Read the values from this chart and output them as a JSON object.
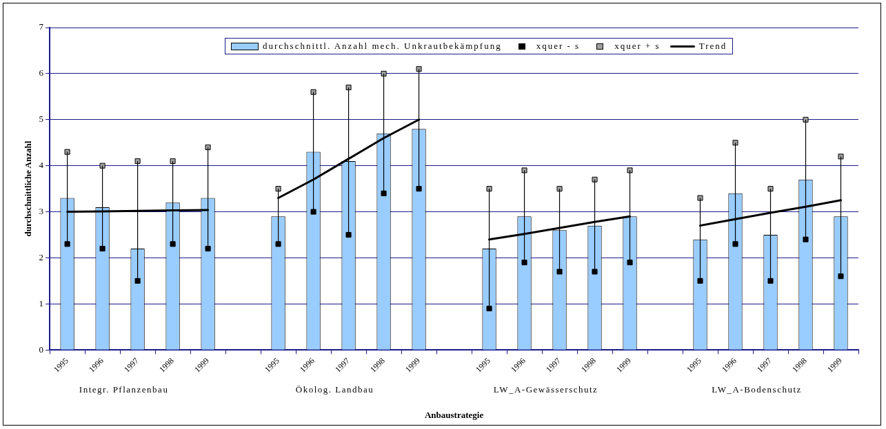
{
  "chart_data": {
    "type": "bar",
    "xlabel": "Anbaustrategie",
    "ylabel": "durchschnittliche Anzahl",
    "annotations": [
      "Integr. Pflanzenbau",
      "Ökolog. Landbau",
      "LW_A-Gewässerschutz",
      "LW_A-Bodenschutz"
    ],
    "categories": [
      "1995",
      "1996",
      "1997",
      "1998",
      "1999",
      null,
      "1995",
      "1996",
      "1997",
      "1998",
      "1999",
      null,
      "1995",
      "1996",
      "1997",
      "1998",
      "1999",
      null,
      "1995",
      "1996",
      "1997",
      "1998",
      "1999"
    ],
    "series": [
      {
        "name": "durchschnittl. Anzahl mech. Unkrautbekämpfung",
        "color": "#99ccff",
        "values": [
          3.3,
          3.1,
          2.2,
          3.2,
          3.3,
          null,
          2.9,
          4.3,
          4.1,
          4.7,
          4.8,
          null,
          2.2,
          2.9,
          2.6,
          2.7,
          2.9,
          null,
          2.4,
          3.4,
          2.5,
          3.7,
          2.9
        ]
      },
      {
        "name": "xquer - s",
        "type": "scatter",
        "marker": "square",
        "color": "#000000",
        "values": [
          2.3,
          2.2,
          1.5,
          2.3,
          2.2,
          null,
          2.3,
          3.0,
          2.5,
          3.4,
          3.5,
          null,
          0.9,
          1.9,
          1.7,
          1.7,
          1.9,
          null,
          1.5,
          2.3,
          1.5,
          2.4,
          1.6
        ]
      },
      {
        "name": "xquer + s",
        "type": "scatter",
        "marker": "square",
        "color": "#a0a0a0",
        "values": [
          4.3,
          4.0,
          4.1,
          4.1,
          4.4,
          null,
          3.5,
          5.6,
          5.7,
          6.0,
          6.1,
          null,
          3.5,
          3.9,
          3.5,
          3.7,
          3.9,
          null,
          3.3,
          4.5,
          3.5,
          5.0,
          4.2
        ]
      },
      {
        "name": "Trend",
        "type": "line",
        "color": "#000000",
        "values": [
          3.0,
          3.01,
          3.02,
          3.03,
          3.04,
          null,
          3.3,
          3.7,
          4.15,
          4.6,
          5.0,
          null,
          2.4,
          2.52,
          2.65,
          2.78,
          2.9,
          null,
          2.7,
          2.84,
          2.98,
          3.11,
          3.25
        ]
      }
    ],
    "ylim": [
      0,
      7
    ],
    "yticks": [
      0,
      1,
      2,
      3,
      4,
      5,
      6,
      7
    ],
    "grid": "y",
    "legend": "top right"
  }
}
